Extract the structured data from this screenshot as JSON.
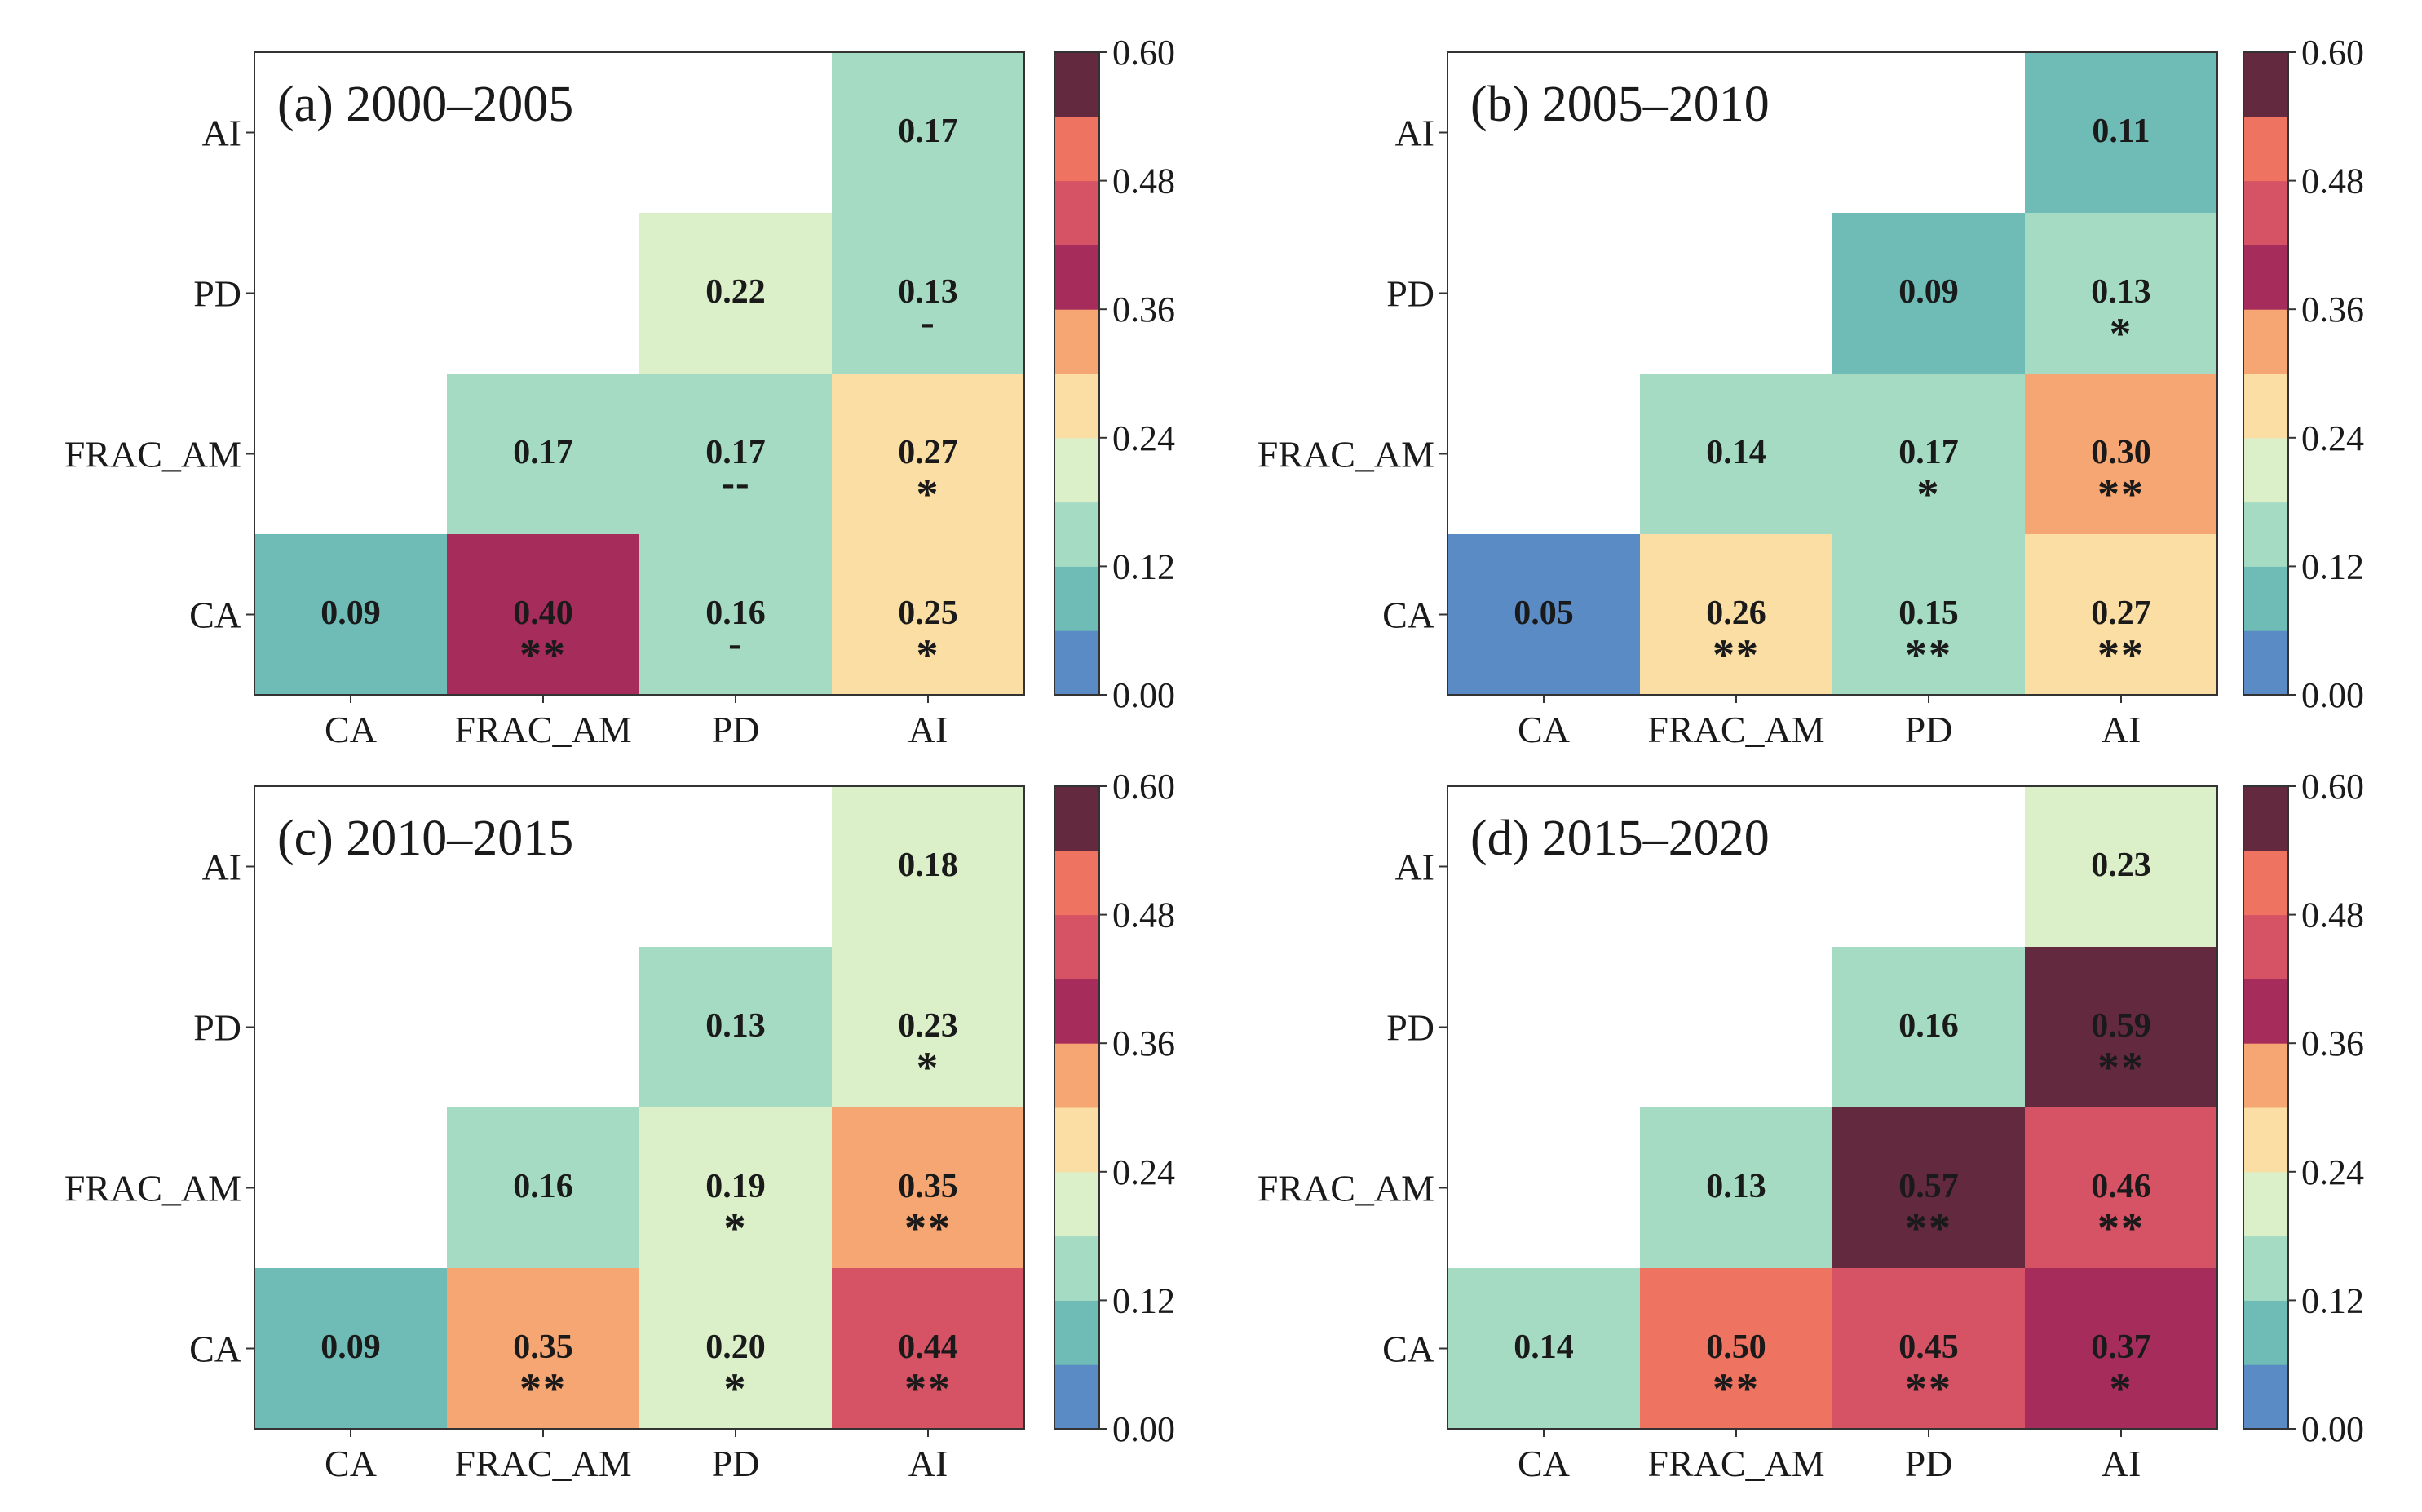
{
  "colorbar": {
    "colors": [
      "#5b8bc4",
      "#6fbcb6",
      "#a6dbc3",
      "#dbf0c9",
      "#fbdea3",
      "#f6a672",
      "#a62c5c",
      "#d65366",
      "#ee7461",
      "#63293e"
    ],
    "tick_labels": [
      "0.00",
      "0.12",
      "0.24",
      "0.36",
      "0.48",
      "0.60"
    ],
    "min": 0,
    "max": 0.6
  },
  "chart_data": [
    {
      "type": "heatmap",
      "title": "(a) 2000–2005",
      "x_labels": [
        "CA",
        "FRAC_AM",
        "PD",
        "AI"
      ],
      "y_labels": [
        "CA",
        "FRAC_AM",
        "PD",
        "AI"
      ],
      "cells": [
        {
          "x": "CA",
          "y": "CA",
          "value": 0.09,
          "value_label": "0.09",
          "sig": ""
        },
        {
          "x": "FRAC_AM",
          "y": "CA",
          "value": 0.4,
          "value_label": "0.40",
          "sig": "**"
        },
        {
          "x": "PD",
          "y": "CA",
          "value": 0.16,
          "value_label": "0.16",
          "sig": "-"
        },
        {
          "x": "AI",
          "y": "CA",
          "value": 0.25,
          "value_label": "0.25",
          "sig": "*"
        },
        {
          "x": "FRAC_AM",
          "y": "FRAC_AM",
          "value": 0.17,
          "value_label": "0.17",
          "sig": ""
        },
        {
          "x": "PD",
          "y": "FRAC_AM",
          "value": 0.17,
          "value_label": "0.17",
          "sig": "--"
        },
        {
          "x": "AI",
          "y": "FRAC_AM",
          "value": 0.27,
          "value_label": "0.27",
          "sig": "*"
        },
        {
          "x": "PD",
          "y": "PD",
          "value": 0.22,
          "value_label": "0.22",
          "sig": ""
        },
        {
          "x": "AI",
          "y": "PD",
          "value": 0.13,
          "value_label": "0.13",
          "sig": "-"
        },
        {
          "x": "AI",
          "y": "AI",
          "value": 0.17,
          "value_label": "0.17",
          "sig": ""
        }
      ]
    },
    {
      "type": "heatmap",
      "title": "(b) 2005–2010",
      "x_labels": [
        "CA",
        "FRAC_AM",
        "PD",
        "AI"
      ],
      "y_labels": [
        "CA",
        "FRAC_AM",
        "PD",
        "AI"
      ],
      "cells": [
        {
          "x": "CA",
          "y": "CA",
          "value": 0.05,
          "value_label": "0.05",
          "sig": ""
        },
        {
          "x": "FRAC_AM",
          "y": "CA",
          "value": 0.26,
          "value_label": "0.26",
          "sig": "**"
        },
        {
          "x": "PD",
          "y": "CA",
          "value": 0.15,
          "value_label": "0.15",
          "sig": "**"
        },
        {
          "x": "AI",
          "y": "CA",
          "value": 0.27,
          "value_label": "0.27",
          "sig": "**"
        },
        {
          "x": "FRAC_AM",
          "y": "FRAC_AM",
          "value": 0.14,
          "value_label": "0.14",
          "sig": ""
        },
        {
          "x": "PD",
          "y": "FRAC_AM",
          "value": 0.17,
          "value_label": "0.17",
          "sig": "*"
        },
        {
          "x": "AI",
          "y": "FRAC_AM",
          "value": 0.3,
          "value_label": "0.30",
          "sig": "**"
        },
        {
          "x": "PD",
          "y": "PD",
          "value": 0.09,
          "value_label": "0.09",
          "sig": ""
        },
        {
          "x": "AI",
          "y": "PD",
          "value": 0.13,
          "value_label": "0.13",
          "sig": "*"
        },
        {
          "x": "AI",
          "y": "AI",
          "value": 0.11,
          "value_label": "0.11",
          "sig": ""
        }
      ]
    },
    {
      "type": "heatmap",
      "title": "(c) 2010–2015",
      "x_labels": [
        "CA",
        "FRAC_AM",
        "PD",
        "AI"
      ],
      "y_labels": [
        "CA",
        "FRAC_AM",
        "PD",
        "AI"
      ],
      "cells": [
        {
          "x": "CA",
          "y": "CA",
          "value": 0.09,
          "value_label": "0.09",
          "sig": ""
        },
        {
          "x": "FRAC_AM",
          "y": "CA",
          "value": 0.35,
          "value_label": "0.35",
          "sig": "**"
        },
        {
          "x": "PD",
          "y": "CA",
          "value": 0.2,
          "value_label": "0.20",
          "sig": "*"
        },
        {
          "x": "AI",
          "y": "CA",
          "value": 0.44,
          "value_label": "0.44",
          "sig": "**"
        },
        {
          "x": "FRAC_AM",
          "y": "FRAC_AM",
          "value": 0.16,
          "value_label": "0.16",
          "sig": ""
        },
        {
          "x": "PD",
          "y": "FRAC_AM",
          "value": 0.19,
          "value_label": "0.19",
          "sig": "*"
        },
        {
          "x": "AI",
          "y": "FRAC_AM",
          "value": 0.35,
          "value_label": "0.35",
          "sig": "**"
        },
        {
          "x": "PD",
          "y": "PD",
          "value": 0.13,
          "value_label": "0.13",
          "sig": ""
        },
        {
          "x": "AI",
          "y": "PD",
          "value": 0.23,
          "value_label": "0.23",
          "sig": "*"
        },
        {
          "x": "AI",
          "y": "AI",
          "value": 0.18,
          "value_label": "0.18",
          "sig": ""
        }
      ]
    },
    {
      "type": "heatmap",
      "title": "(d) 2015–2020",
      "x_labels": [
        "CA",
        "FRAC_AM",
        "PD",
        "AI"
      ],
      "y_labels": [
        "CA",
        "FRAC_AM",
        "PD",
        "AI"
      ],
      "cells": [
        {
          "x": "CA",
          "y": "CA",
          "value": 0.14,
          "value_label": "0.14",
          "sig": ""
        },
        {
          "x": "FRAC_AM",
          "y": "CA",
          "value": 0.5,
          "value_label": "0.50",
          "sig": "**"
        },
        {
          "x": "PD",
          "y": "CA",
          "value": 0.45,
          "value_label": "0.45",
          "sig": "**"
        },
        {
          "x": "AI",
          "y": "CA",
          "value": 0.37,
          "value_label": "0.37",
          "sig": "*"
        },
        {
          "x": "FRAC_AM",
          "y": "FRAC_AM",
          "value": 0.13,
          "value_label": "0.13",
          "sig": ""
        },
        {
          "x": "PD",
          "y": "FRAC_AM",
          "value": 0.57,
          "value_label": "0.57",
          "sig": "**"
        },
        {
          "x": "AI",
          "y": "FRAC_AM",
          "value": 0.46,
          "value_label": "0.46",
          "sig": "**"
        },
        {
          "x": "PD",
          "y": "PD",
          "value": 0.16,
          "value_label": "0.16",
          "sig": ""
        },
        {
          "x": "AI",
          "y": "PD",
          "value": 0.59,
          "value_label": "0.59",
          "sig": "**"
        },
        {
          "x": "AI",
          "y": "AI",
          "value": 0.23,
          "value_label": "0.23",
          "sig": ""
        }
      ]
    }
  ]
}
